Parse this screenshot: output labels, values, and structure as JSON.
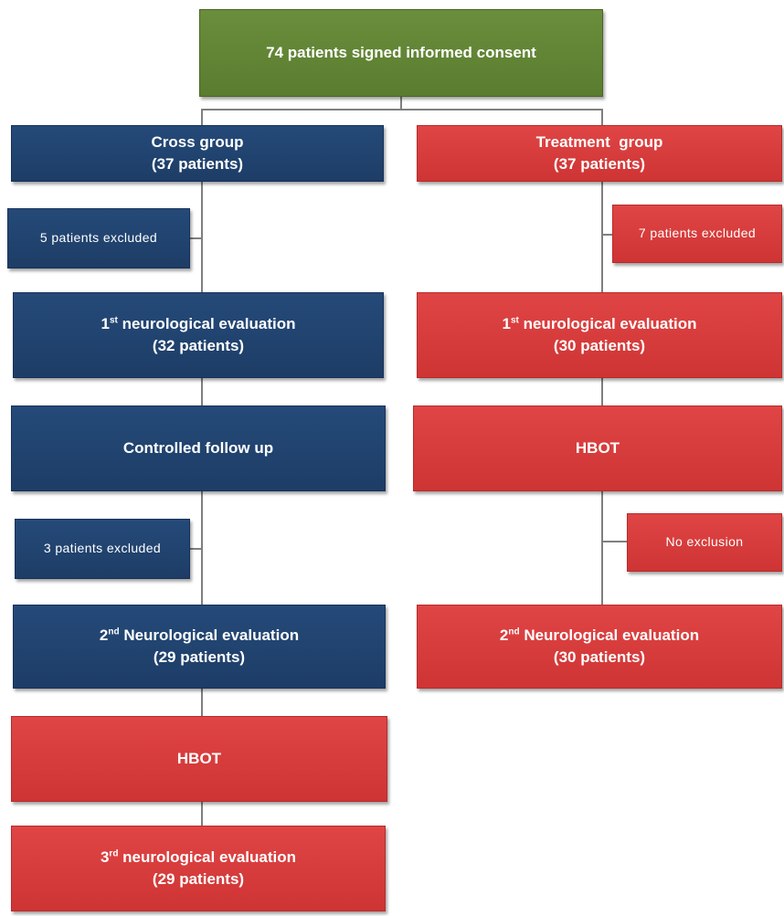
{
  "top": {
    "text": "74 patients signed informed consent"
  },
  "cross": {
    "group": {
      "title": "Cross group",
      "count": "(37 patients)"
    },
    "excluded_1": "5 patients excluded",
    "eval_1": {
      "ord": "1",
      "sup": "st",
      "label": " neurological evaluation",
      "count": "(32 patients)"
    },
    "followup": "Controlled follow up",
    "excluded_2": "3 patients excluded",
    "eval_2": {
      "ord": "2",
      "sup": "nd",
      "label": " Neurological evaluation",
      "count": "(29 patients)"
    },
    "hbot": "HBOT",
    "eval_3": {
      "ord": "3",
      "sup": "rd",
      "label": " neurological evaluation",
      "count": "(29 patients)"
    }
  },
  "treatment": {
    "group": {
      "title": "Treatment  group",
      "count": "(37 patients)"
    },
    "excluded_1": "7 patients excluded",
    "eval_1": {
      "ord": "1",
      "sup": "st",
      "label": " neurological evaluation",
      "count": "(30 patients)"
    },
    "hbot": "HBOT",
    "no_exclusion": "No exclusion",
    "eval_2": {
      "ord": "2",
      "sup": "nd",
      "label": " Neurological evaluation",
      "count": "(30 patients)"
    }
  },
  "colors": {
    "green": "#5f832f",
    "blue": "#1f416d",
    "red": "#d93a3a",
    "line": "#7f7f7f"
  }
}
